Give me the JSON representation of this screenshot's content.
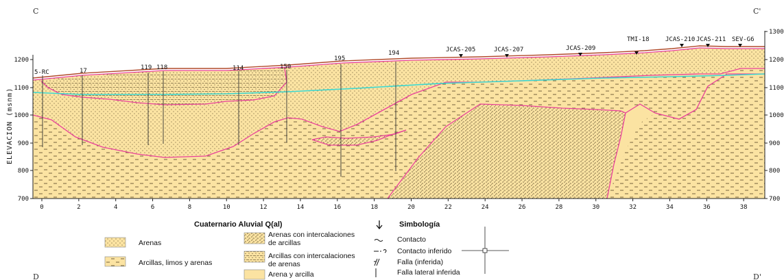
{
  "corners": {
    "top_left": "C",
    "top_right": "C'",
    "bottom_left": "D",
    "bottom_right": "D'"
  },
  "axes": {
    "y_label": "ELEVACION (msnm)",
    "y_left_ticks": [
      "1200",
      "1100",
      "1000",
      "900",
      "800",
      "700"
    ],
    "y_right_ticks": [
      "1300",
      "1200",
      "1100",
      "1000",
      "900",
      "800",
      "700"
    ],
    "x_ticks": [
      "0",
      "2",
      "4",
      "6",
      "8",
      "10",
      "12",
      "14",
      "16",
      "18",
      "20",
      "22",
      "24",
      "26",
      "28",
      "30",
      "32",
      "34",
      "36",
      "38"
    ]
  },
  "wells": [
    {
      "label": "5-RC"
    },
    {
      "label": "17"
    },
    {
      "label": "119"
    },
    {
      "label": "118"
    },
    {
      "label": "114"
    },
    {
      "label": "150"
    },
    {
      "label": "195"
    },
    {
      "label": "194"
    }
  ],
  "stations": [
    {
      "label": "JCAS-205"
    },
    {
      "label": "JCAS-207"
    },
    {
      "label": "JCAS-209"
    },
    {
      "label": "TMI-18"
    },
    {
      "label": "JCAS-210"
    },
    {
      "label": "JCAS-211"
    },
    {
      "label": "SEV-G6"
    }
  ],
  "legend": {
    "unit_title": "Cuaternario Aluvial Q(al)",
    "units": [
      {
        "label": "Arenas",
        "pattern": "arenas"
      },
      {
        "label": "Arcillas, limos y arenas",
        "pattern": "arcillas"
      },
      {
        "label_1": "Arenas con intercalaciones",
        "label_2": "de arcillas",
        "pattern": "arenas-int"
      },
      {
        "label_1": "Arcillas con intercalaciones",
        "label_2": "de arenas",
        "pattern": "arcillas-int"
      },
      {
        "label": "Arena y arcilla",
        "pattern": "plain"
      }
    ],
    "symbol_title": "Simbología",
    "symbols": [
      "Contacto",
      "Contacto inferido",
      "Falla (inferida)",
      "Falla lateral inferida"
    ]
  },
  "colors": {
    "fill": "#fbe3a2",
    "contact": "#e8409a",
    "surface": "#b14a2a",
    "water_table": "#3ad7d0",
    "dots": "#3a2a10"
  }
}
